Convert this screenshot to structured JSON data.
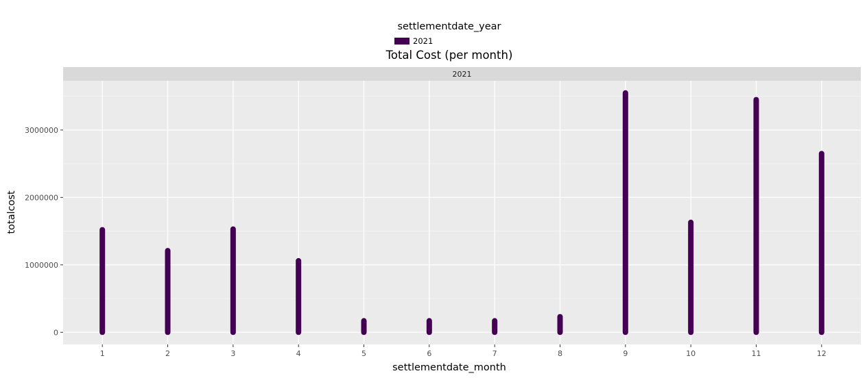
{
  "chart_data": {
    "type": "bar",
    "title": "Total Cost (per month)",
    "xlabel": "settlementdate_month",
    "ylabel": "totalcost",
    "facet_label": "2021",
    "legend": {
      "title": "settlementdate_year",
      "position": "top",
      "entries": [
        {
          "label": "2021",
          "color": "#440154"
        }
      ]
    },
    "categories": [
      "1",
      "2",
      "3",
      "4",
      "5",
      "6",
      "7",
      "8",
      "9",
      "10",
      "11",
      "12"
    ],
    "x_ticks": [
      "1",
      "2",
      "3",
      "4",
      "5",
      "6",
      "7",
      "8",
      "9",
      "10",
      "11",
      "12"
    ],
    "y_ticks": [
      0,
      1000000,
      2000000,
      3000000
    ],
    "y_tick_labels": [
      "0",
      "1000000",
      "2000000",
      "3000000"
    ],
    "ylim": [
      -180000,
      3730000
    ],
    "grid": true,
    "series": [
      {
        "name": "2021",
        "color": "#440154",
        "min": [
          0,
          0,
          0,
          0,
          0,
          0,
          0,
          0,
          0,
          0,
          0,
          0
        ],
        "max": [
          1520000,
          1210000,
          1530000,
          1060000,
          170000,
          170000,
          170000,
          230000,
          3550000,
          1630000,
          3450000,
          2650000
        ]
      }
    ]
  }
}
